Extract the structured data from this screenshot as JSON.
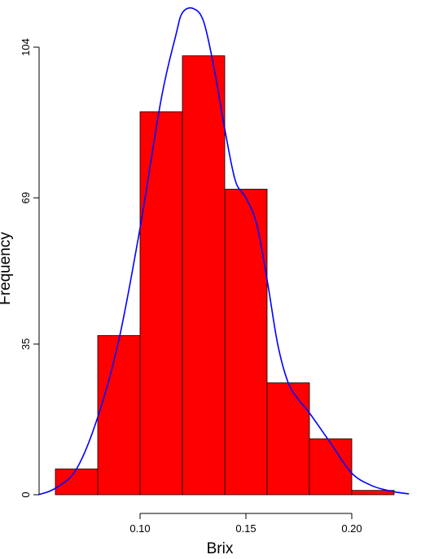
{
  "chart_data": {
    "type": "bar",
    "subtype": "histogram",
    "bin_edges": [
      0.06,
      0.08,
      0.1,
      0.12,
      0.14,
      0.16,
      0.18,
      0.2,
      0.22
    ],
    "values": [
      6,
      37,
      89,
      102,
      71,
      26,
      13,
      1
    ],
    "bar_color": "#ff0000",
    "density_color": "#0000ff",
    "density_curve": {
      "x": [
        0.052,
        0.06,
        0.07,
        0.08,
        0.09,
        0.1,
        0.11,
        0.117,
        0.12,
        0.125,
        0.13,
        0.135,
        0.14,
        0.145,
        0.15,
        0.155,
        0.16,
        0.165,
        0.17,
        0.175,
        0.18,
        0.19,
        0.2,
        0.21,
        0.22,
        0.227
      ],
      "y": [
        0,
        1.5,
        6,
        18,
        36,
        62,
        92,
        107,
        112,
        113,
        110,
        99,
        85,
        73,
        69,
        63,
        50,
        35,
        26,
        22,
        19,
        12,
        5,
        2,
        0.7,
        0.2
      ]
    },
    "xlabel": "Brix",
    "ylabel": "Frequency",
    "xticks": [
      0.1,
      0.15,
      0.2
    ],
    "xtick_labels": [
      "0.10",
      "0.15",
      "0.20"
    ],
    "yticks": [
      0,
      35,
      69,
      104
    ],
    "ytick_labels": [
      "0",
      "35",
      "69",
      "104"
    ],
    "xlim": [
      0.0545,
      0.227
    ],
    "ylim": [
      0,
      104
    ],
    "grid": false
  }
}
